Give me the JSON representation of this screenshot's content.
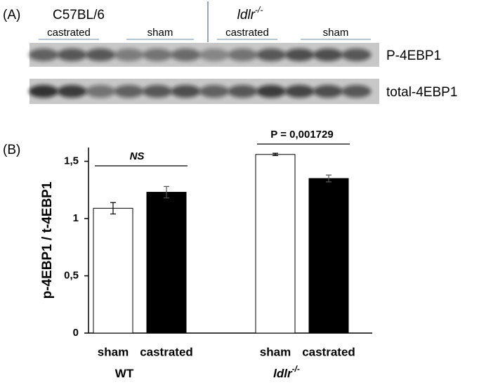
{
  "panel_a": {
    "label": "(A)",
    "strains": [
      {
        "name": "C57BL/6",
        "sup": null
      },
      {
        "name": "ldlr",
        "sup": "-/-"
      }
    ],
    "groups": [
      "castrated",
      "sham",
      "castrated",
      "sham"
    ],
    "rows": [
      "P-4EBP1",
      "total-4EBP1"
    ]
  },
  "panel_b_label": "(B)",
  "chart_data": {
    "type": "bar",
    "y_label": "p-4EBP1 / t-4EBP1",
    "categories": [
      "WT",
      "ldlr"
    ],
    "category_sup": [
      null,
      "-/-"
    ],
    "series": [
      {
        "name": "sham",
        "color": "#ffffff",
        "values": [
          1.09,
          1.56
        ],
        "errors": [
          0.05,
          0.01
        ]
      },
      {
        "name": "castrated",
        "color": "#000000",
        "values": [
          1.23,
          1.35
        ],
        "errors": [
          0.05,
          0.03
        ]
      }
    ],
    "annotations": [
      "NS",
      "P = 0,001729"
    ],
    "ylim": [
      0,
      1.62
    ],
    "yticks": [
      0,
      {
        "value": 0.5,
        "label": "0,5"
      },
      1,
      {
        "value": 1.5,
        "label": "1,5"
      }
    ]
  }
}
